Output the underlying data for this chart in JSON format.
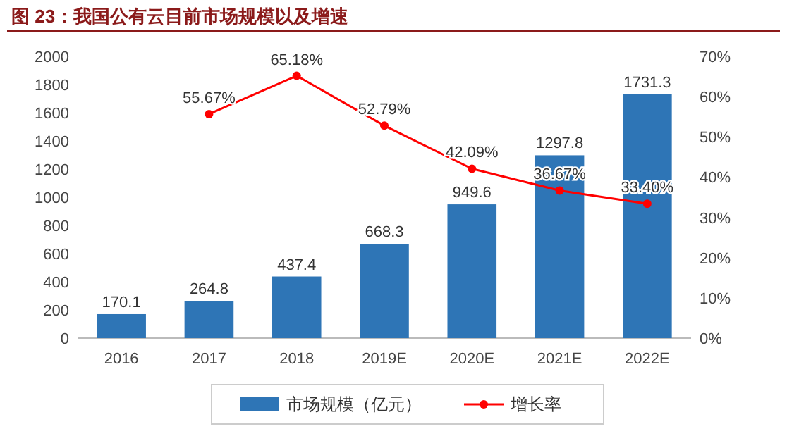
{
  "chart_data": {
    "type": "bar",
    "title": "图 23：我国公有云目前市场规模以及增速",
    "categories": [
      "2016",
      "2017",
      "2018",
      "2019E",
      "2020E",
      "2021E",
      "2022E"
    ],
    "series": [
      {
        "name": "市场规模（亿元）",
        "color": "#2e75b6",
        "values": [
          170.1,
          264.8,
          437.4,
          668.3,
          949.6,
          1297.8,
          1731.3
        ],
        "value_labels": [
          "170.1",
          "264.8",
          "437.4",
          "668.3",
          "949.6",
          "1297.8",
          "1731.3"
        ]
      },
      {
        "name": "增长率",
        "type": "line",
        "axis": "y2",
        "color": "#ff0000",
        "marker": "circle",
        "values": [
          null,
          55.67,
          65.18,
          52.79,
          42.09,
          36.67,
          33.4
        ],
        "value_labels": [
          null,
          "55.67%",
          "65.18%",
          "52.79%",
          "42.09%",
          "36.67%",
          "33.40%"
        ]
      }
    ],
    "ylim": [
      0,
      2000
    ],
    "yticks": [
      0,
      200,
      400,
      600,
      800,
      1000,
      1200,
      1400,
      1600,
      1800,
      2000
    ],
    "y2lim": [
      0,
      70
    ],
    "y2ticks": [
      {
        "value": 0,
        "label": "0%"
      },
      {
        "value": 10,
        "label": "10%"
      },
      {
        "value": 20,
        "label": "20%"
      },
      {
        "value": 30,
        "label": "30%"
      },
      {
        "value": 40,
        "label": "40%"
      },
      {
        "value": 50,
        "label": "50%"
      },
      {
        "value": 60,
        "label": "60%"
      },
      {
        "value": 70,
        "label": "70%"
      }
    ],
    "grid": false,
    "legend": "bottom"
  }
}
